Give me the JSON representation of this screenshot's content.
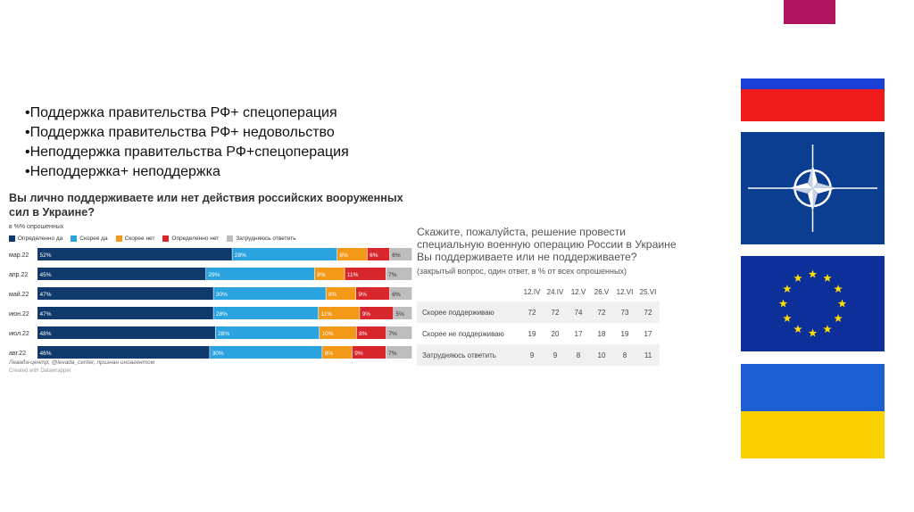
{
  "slide": {
    "bullets": [
      "•Поддержка правительства РФ+ спецоперация",
      "•Поддержка правительства РФ+ недовольство",
      "•Неподдержка правительства РФ+спецоперация",
      "•Неподдержка+ неподдержка"
    ],
    "accent_color": "#b0145f"
  },
  "left_chart": {
    "title": "Вы лично поддерживаете или нет действия российских вооруженных сил в Украине?",
    "subtitle": "в %% опрошенных",
    "source": "Левада-центр, @levada_center, признан иноагентом",
    "credit": "Created with Datawrapper"
  },
  "right_chart": {
    "title": "Скажите, пожалуйста, решение провести специальную военную операцию России в Украине Вы поддерживаете или не поддерживаете?",
    "subtitle": "(закрытый вопрос, один ответ, в % от всех опрошенных)"
  },
  "flags": [
    {
      "name": "russia-flag-icon"
    },
    {
      "name": "nato-flag-icon"
    },
    {
      "name": "eu-flag-icon"
    },
    {
      "name": "ukraine-flag-icon"
    }
  ],
  "chart_data": [
    {
      "type": "bar",
      "orientation": "horizontal-stacked",
      "categories": [
        "мар.22",
        "апр.22",
        "май.22",
        "июн.22",
        "июл.22",
        "авг.22"
      ],
      "series": [
        {
          "name": "Определенно да",
          "color": "#0f3a6b",
          "values": [
            52,
            45,
            47,
            47,
            48,
            46
          ]
        },
        {
          "name": "Скорее да",
          "color": "#2aa3de",
          "values": [
            28,
            29,
            30,
            28,
            28,
            30
          ]
        },
        {
          "name": "Скорее нет",
          "color": "#f29a17",
          "values": [
            8,
            8,
            8,
            11,
            10,
            8
          ]
        },
        {
          "name": "Определенно нет",
          "color": "#d7262c",
          "values": [
            6,
            11,
            9,
            9,
            8,
            9
          ]
        },
        {
          "name": "Затрудняюсь ответить",
          "color": "#bdbdbd",
          "values": [
            6,
            7,
            6,
            5,
            7,
            7
          ]
        }
      ],
      "value_suffix": "%"
    },
    {
      "type": "table",
      "columns": [
        "12.IV",
        "24.IV",
        "12.V",
        "26.V",
        "12.VI",
        "25.VI"
      ],
      "rows": [
        {
          "label": "Скорее поддерживаю",
          "values": [
            "72",
            "72",
            "74",
            "72",
            "73",
            "72"
          ]
        },
        {
          "label": "Скорее не поддерживаю",
          "values": [
            "19",
            "20",
            "17",
            "18",
            "19",
            "17"
          ]
        },
        {
          "label": "Затрудняюсь ответить",
          "values": [
            "9",
            "9",
            "8",
            "10",
            "8",
            "11"
          ]
        }
      ]
    }
  ]
}
